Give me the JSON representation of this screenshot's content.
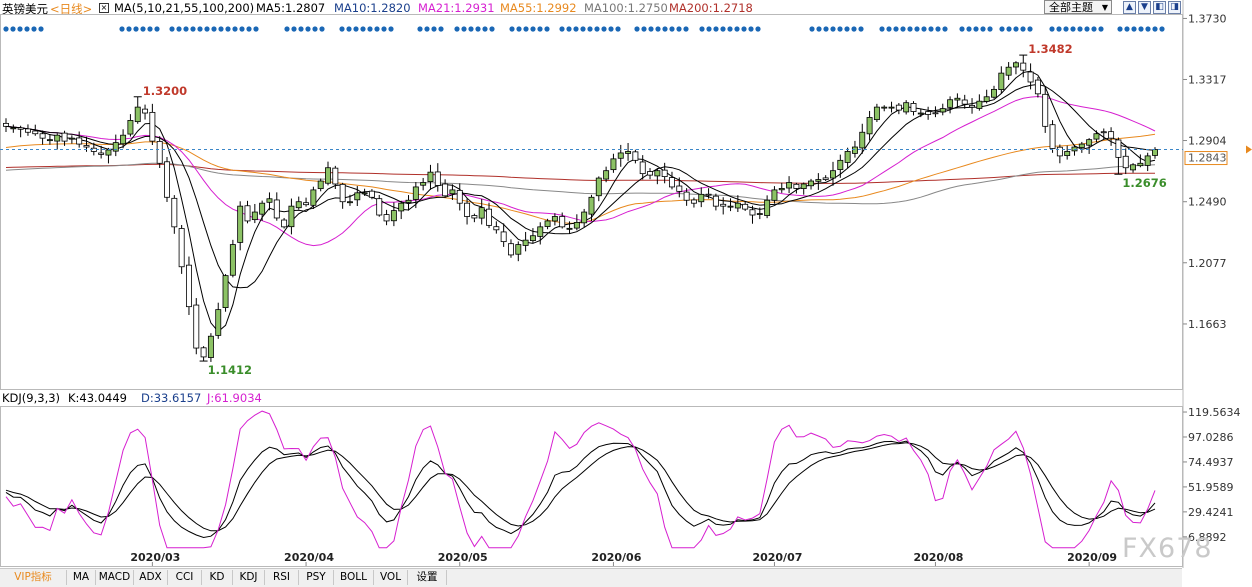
{
  "header": {
    "instrument": "英镑美元",
    "period": "<日线>",
    "ma_title": "MA(5,10,21,55,100,200)",
    "ma5": "MA5:1.2807",
    "ma10": "MA10:1.2820",
    "ma21": "MA21:1.2931",
    "ma55": "MA55:1.2992",
    "ma100": "MA100:1.2750",
    "ma200": "MA200:1.2718",
    "theme_select": "全部主题",
    "buttons": [
      "▲",
      "▼",
      "◧",
      "◨"
    ]
  },
  "kdj_header": {
    "title": "KDJ(9,3,3)",
    "k": "K:43.0449",
    "d": "D:33.6157",
    "j": "J:61.9034"
  },
  "bottom_tabs": [
    "VIP指标",
    "MA",
    "MACD",
    "ADX",
    "CCI",
    "KD",
    "KDJ",
    "RSI",
    "PSY",
    "BOLL",
    "VOL",
    "设置"
  ],
  "watermark": "FX678",
  "colors": {
    "up": "#8cc265",
    "down": "#ffffff",
    "candle_outline": "#000000",
    "ma5": "#000000",
    "ma10": "#000000",
    "ma21": "#d61fd0",
    "ma55": "#e8891e",
    "ma100": "#888888",
    "ma200": "#b0302a",
    "k": "#000000",
    "d": "#000000",
    "j": "#d61fd0",
    "price_tag": "#e8891e",
    "dots": "#1a67b5",
    "high_label": "#c0392b",
    "low_label": "#3a8d2a"
  },
  "chart_data": [
    {
      "type": "candlestick",
      "title": "英镑美元 <日线>",
      "x_labels": [
        "2020/03",
        "2020/04",
        "2020/05",
        "2020/06",
        "2020/07",
        "2020/08",
        "2020/09"
      ],
      "y_ticks": [
        1.373,
        1.3317,
        1.2904,
        1.249,
        1.2077,
        1.1663
      ],
      "ylim": [
        1.125,
        1.376
      ],
      "current_price": 1.2843,
      "annotations": [
        {
          "label": "1.3200",
          "value": 1.32,
          "kind": "high"
        },
        {
          "label": "1.1412",
          "value": 1.1412,
          "kind": "low"
        },
        {
          "label": "1.3482",
          "value": 1.3482,
          "kind": "high"
        },
        {
          "label": "1.2676",
          "value": 1.2676,
          "kind": "low"
        }
      ],
      "closes": [
        1.3,
        1.299,
        1.298,
        1.296,
        1.295,
        1.292,
        1.291,
        1.294,
        1.29,
        1.292,
        1.288,
        1.286,
        1.283,
        1.281,
        1.284,
        1.289,
        1.294,
        1.304,
        1.313,
        1.309,
        1.29,
        1.275,
        1.252,
        1.232,
        1.205,
        1.178,
        1.15,
        1.144,
        1.158,
        1.176,
        1.199,
        1.22,
        1.246,
        1.236,
        1.242,
        1.248,
        1.251,
        1.238,
        1.232,
        1.246,
        1.249,
        1.247,
        1.257,
        1.263,
        1.272,
        1.261,
        1.249,
        1.249,
        1.255,
        1.255,
        1.252,
        1.24,
        1.236,
        1.243,
        1.248,
        1.25,
        1.259,
        1.262,
        1.269,
        1.26,
        1.253,
        1.257,
        1.248,
        1.239,
        1.238,
        1.245,
        1.233,
        1.23,
        1.222,
        1.213,
        1.22,
        1.223,
        1.226,
        1.232,
        1.236,
        1.239,
        1.232,
        1.231,
        1.235,
        1.242,
        1.252,
        1.265,
        1.27,
        1.278,
        1.282,
        1.283,
        1.277,
        1.268,
        1.267,
        1.27,
        1.266,
        1.259,
        1.256,
        1.25,
        1.248,
        1.254,
        1.254,
        1.246,
        1.246,
        1.246,
        1.248,
        1.244,
        1.24,
        1.241,
        1.25,
        1.257,
        1.258,
        1.262,
        1.258,
        1.261,
        1.263,
        1.264,
        1.264,
        1.27,
        1.277,
        1.283,
        1.286,
        1.296,
        1.306,
        1.313,
        1.313,
        1.313,
        1.311,
        1.316,
        1.31,
        1.309,
        1.308,
        1.309,
        1.312,
        1.318,
        1.319,
        1.315,
        1.313,
        1.317,
        1.32,
        1.325,
        1.336,
        1.34,
        1.343,
        1.338,
        1.33,
        1.322,
        1.3,
        1.285,
        1.28,
        1.283,
        1.286,
        1.288,
        1.291,
        1.295,
        1.296,
        1.292,
        1.279,
        1.272,
        1.274,
        1.275,
        1.28,
        1.2843
      ],
      "ma": {
        "ma5": [
          1.2807
        ],
        "ma10": [
          1.282
        ],
        "ma21": [
          1.2931
        ],
        "ma55": [
          1.2992
        ],
        "ma100": [
          1.275
        ],
        "ma200": [
          1.2718
        ]
      }
    },
    {
      "type": "line",
      "title": "KDJ(9,3,3)",
      "y_ticks": [
        119.5634,
        97.0286,
        74.4937,
        51.9589,
        29.4241,
        6.8892
      ],
      "ylim": [
        -5,
        125
      ],
      "series": [
        {
          "name": "K",
          "last": 43.0449
        },
        {
          "name": "D",
          "last": 33.6157
        },
        {
          "name": "J",
          "last": 61.9034
        }
      ]
    }
  ]
}
